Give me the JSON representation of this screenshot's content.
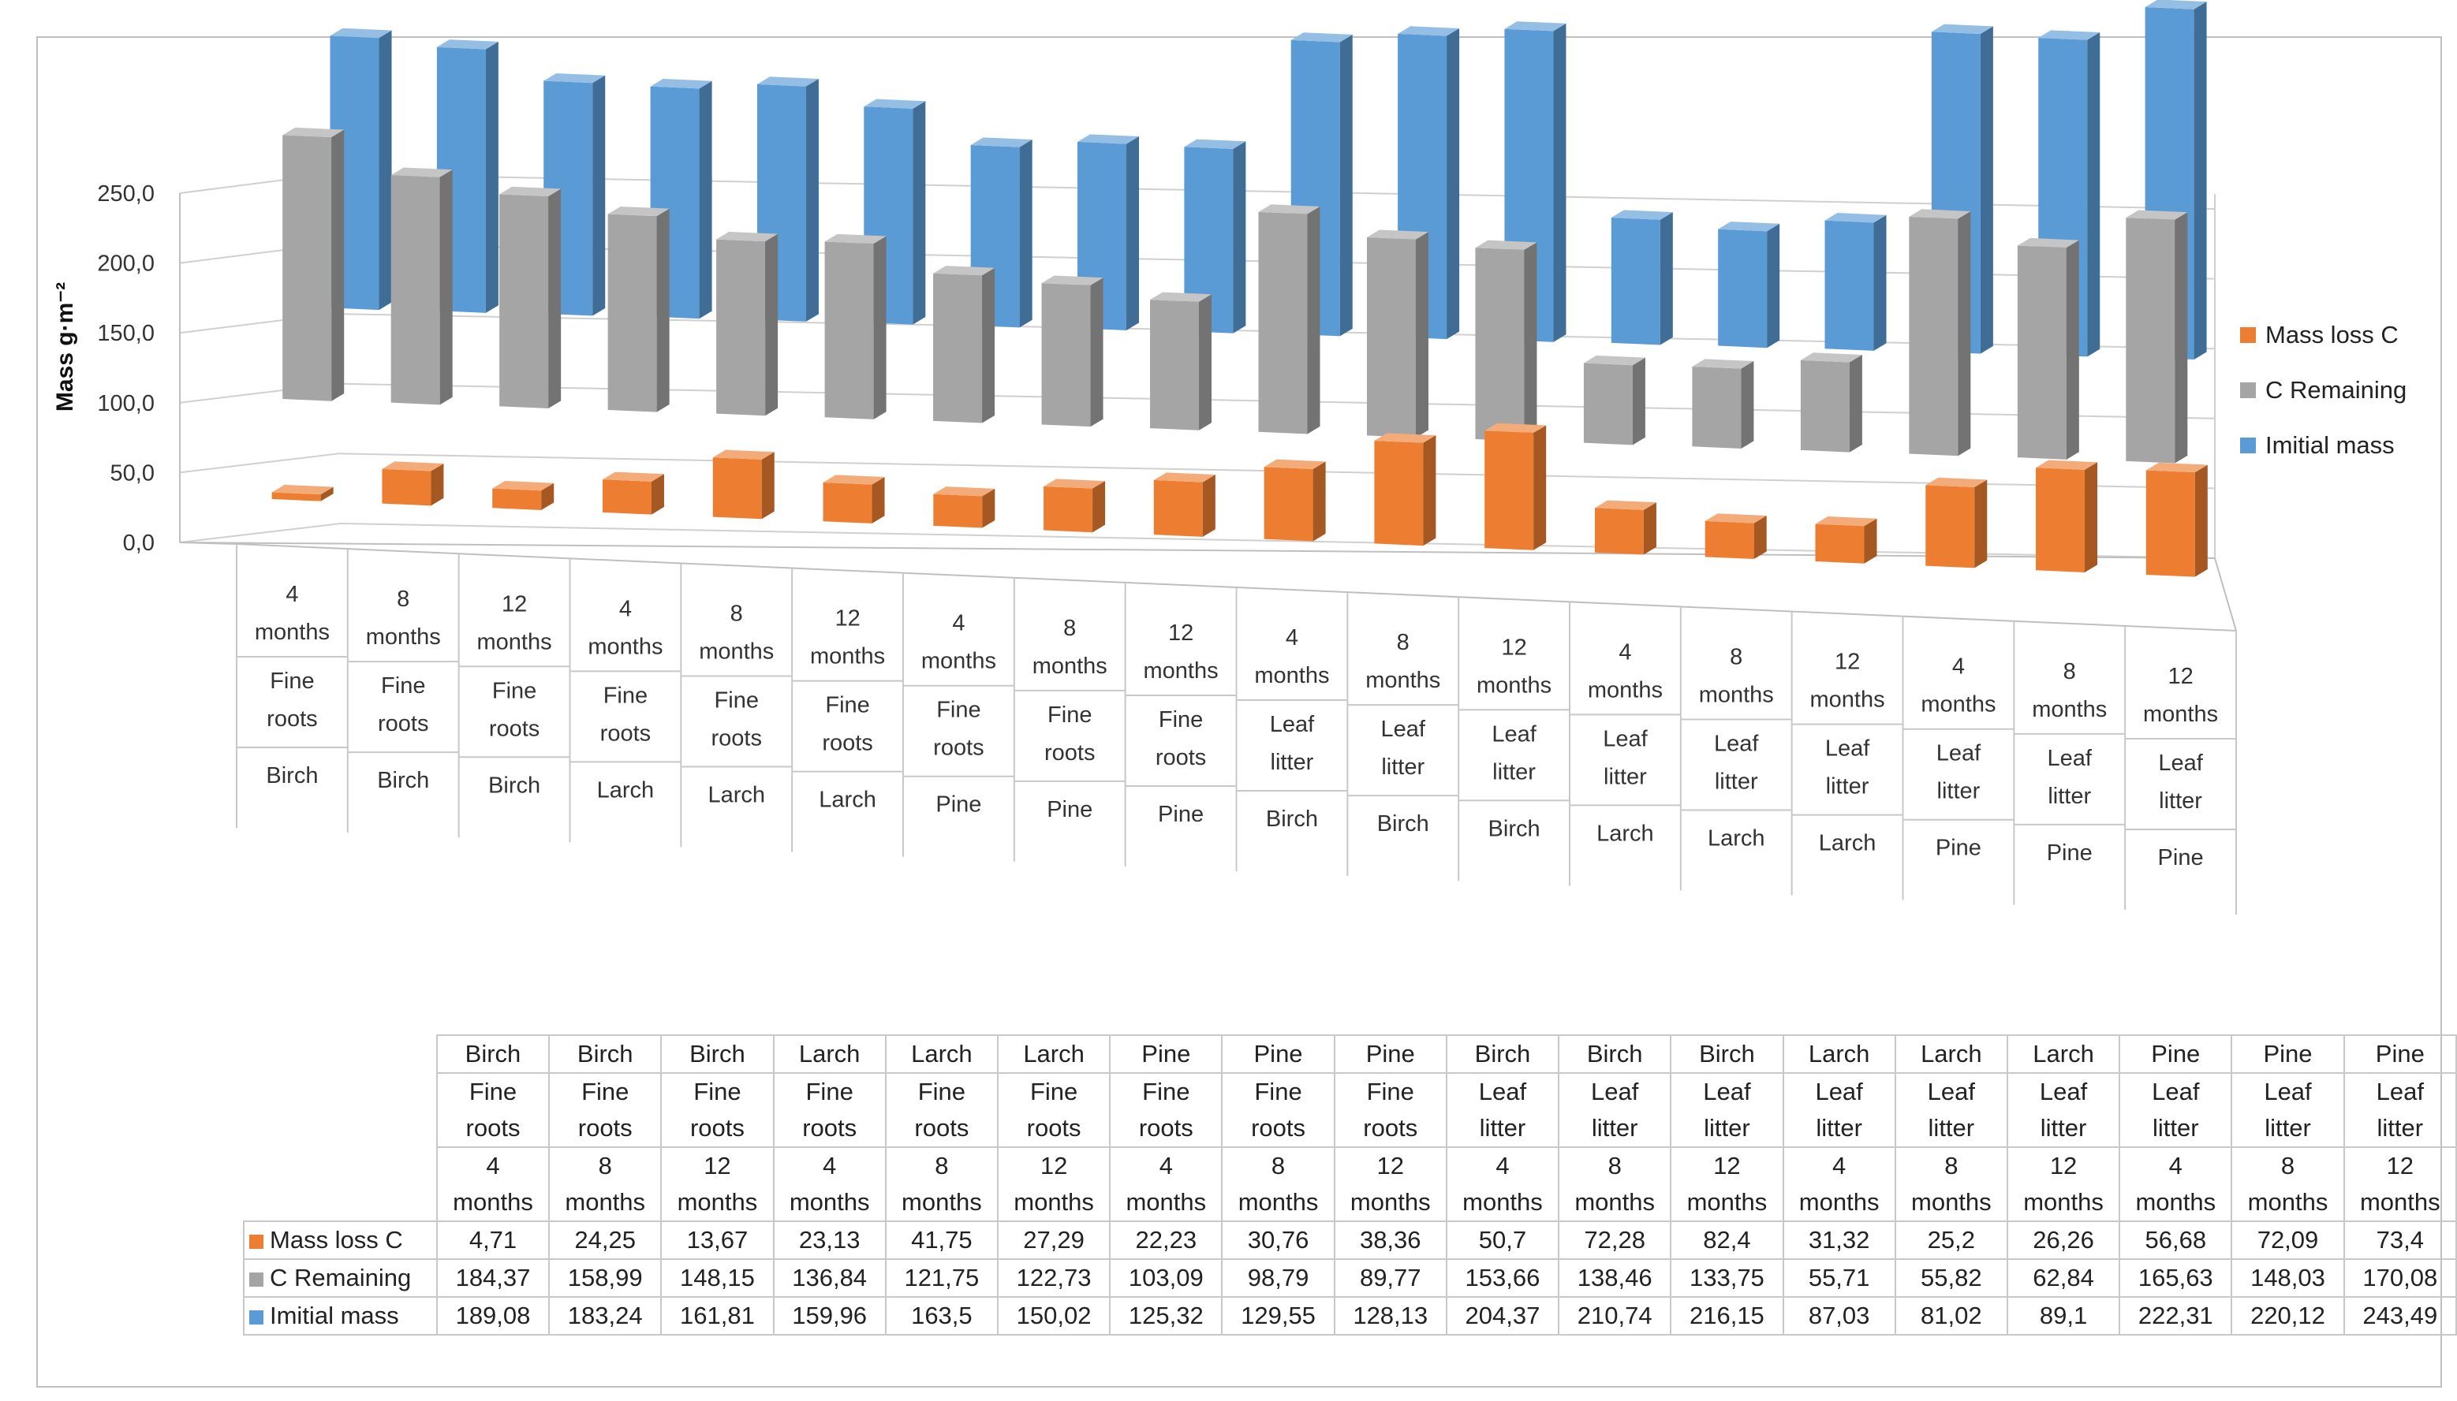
{
  "chart_data": {
    "type": "bar",
    "ylabel": "Mass g·m⁻²",
    "ylim": [
      0,
      250
    ],
    "yticks": [
      "0,0",
      "50,0",
      "100,0",
      "150,0",
      "200,0",
      "250,0"
    ],
    "grid": true,
    "legend_position": "right",
    "categories": [
      {
        "time": "4 months",
        "type": "Fine roots",
        "tree": "Birch"
      },
      {
        "time": "8 months",
        "type": "Fine roots",
        "tree": "Birch"
      },
      {
        "time": "12 months",
        "type": "Fine roots",
        "tree": "Birch"
      },
      {
        "time": "4 months",
        "type": "Fine roots",
        "tree": "Larch"
      },
      {
        "time": "8 months",
        "type": "Fine roots",
        "tree": "Larch"
      },
      {
        "time": "12 months",
        "type": "Fine roots",
        "tree": "Larch"
      },
      {
        "time": "4 months",
        "type": "Fine roots",
        "tree": "Pine"
      },
      {
        "time": "8 months",
        "type": "Fine roots",
        "tree": "Pine"
      },
      {
        "time": "12 months",
        "type": "Fine roots",
        "tree": "Pine"
      },
      {
        "time": "4 months",
        "type": "Leaf litter",
        "tree": "Birch"
      },
      {
        "time": "8 months",
        "type": "Leaf litter",
        "tree": "Birch"
      },
      {
        "time": "12 months",
        "type": "Leaf litter",
        "tree": "Birch"
      },
      {
        "time": "4 months",
        "type": "Leaf litter",
        "tree": "Larch"
      },
      {
        "time": "8 months",
        "type": "Leaf litter",
        "tree": "Larch"
      },
      {
        "time": "12 months",
        "type": "Leaf litter",
        "tree": "Larch"
      },
      {
        "time": "4 months",
        "type": "Leaf litter",
        "tree": "Pine"
      },
      {
        "time": "8 months",
        "type": "Leaf litter",
        "tree": "Pine"
      },
      {
        "time": "12 months",
        "type": "Leaf litter",
        "tree": "Pine"
      }
    ],
    "series": [
      {
        "name": "Mass loss C",
        "color": "#ED7D31",
        "values": [
          4.71,
          24.25,
          13.67,
          23.13,
          41.75,
          27.29,
          22.23,
          30.76,
          38.36,
          50.7,
          72.28,
          82.4,
          31.32,
          25.2,
          26.26,
          56.68,
          72.09,
          73.4
        ],
        "labels": [
          "4,71",
          "24,25",
          "13,67",
          "23,13",
          "41,75",
          "27,29",
          "22,23",
          "30,76",
          "38,36",
          "50,7",
          "72,28",
          "82,4",
          "31,32",
          "25,2",
          "26,26",
          "56,68",
          "72,09",
          "73,4"
        ]
      },
      {
        "name": "C Remaining",
        "color": "#A5A5A5",
        "values": [
          184.37,
          158.99,
          148.15,
          136.84,
          121.75,
          122.73,
          103.09,
          98.79,
          89.77,
          153.66,
          138.46,
          133.75,
          55.71,
          55.82,
          62.84,
          165.63,
          148.03,
          170.08
        ],
        "labels": [
          "184,37",
          "158,99",
          "148,15",
          "136,84",
          "121,75",
          "122,73",
          "103,09",
          "98,79",
          "89,77",
          "153,66",
          "138,46",
          "133,75",
          "55,71",
          "55,82",
          "62,84",
          "165,63",
          "148,03",
          "170,08"
        ]
      },
      {
        "name": "Imitial mass",
        "color": "#5B9BD5",
        "values": [
          189.08,
          183.24,
          161.81,
          159.96,
          163.5,
          150.02,
          125.32,
          129.55,
          128.13,
          204.37,
          210.74,
          216.15,
          87.03,
          81.02,
          89.1,
          222.31,
          220.12,
          243.49
        ],
        "labels": [
          "189,08",
          "183,24",
          "161,81",
          "159,96",
          "163,5",
          "150,02",
          "125,32",
          "129,55",
          "128,13",
          "204,37",
          "210,74",
          "216,15",
          "87,03",
          "81,02",
          "89,1",
          "222,31",
          "220,12",
          "243,49"
        ]
      }
    ]
  }
}
